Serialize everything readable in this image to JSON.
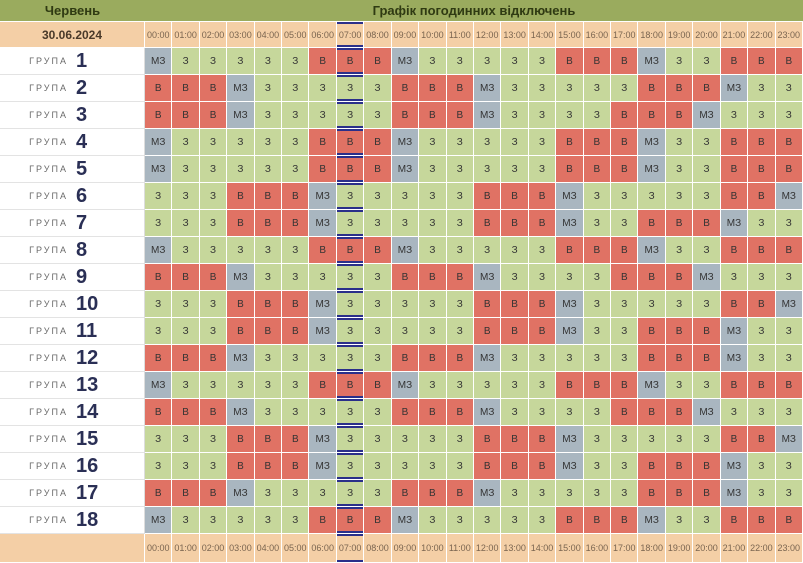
{
  "header": {
    "month": "Червень",
    "title": "Графік погодинних відключень",
    "date": "30.06.2024"
  },
  "hours": [
    "00:00",
    "01:00",
    "02:00",
    "03:00",
    "04:00",
    "05:00",
    "06:00",
    "07:00",
    "08:00",
    "09:00",
    "10:00",
    "11:00",
    "12:00",
    "13:00",
    "14:00",
    "15:00",
    "16:00",
    "17:00",
    "18:00",
    "19:00",
    "20:00",
    "21:00",
    "22:00",
    "23:00"
  ],
  "group_word": "ГРУПА",
  "groups": [
    {
      "number": 1,
      "cells": [
        "МЗ",
        "З",
        "З",
        "З",
        "З",
        "З",
        "В",
        "В",
        "В",
        "МЗ",
        "З",
        "З",
        "З",
        "З",
        "З",
        "В",
        "В",
        "В",
        "МЗ",
        "З",
        "З",
        "В",
        "В",
        "В"
      ]
    },
    {
      "number": 2,
      "cells": [
        "В",
        "В",
        "В",
        "МЗ",
        "З",
        "З",
        "З",
        "З",
        "З",
        "В",
        "В",
        "В",
        "МЗ",
        "З",
        "З",
        "З",
        "З",
        "З",
        "В",
        "В",
        "В",
        "МЗ",
        "З",
        "З"
      ]
    },
    {
      "number": 3,
      "cells": [
        "В",
        "В",
        "В",
        "МЗ",
        "З",
        "З",
        "З",
        "З",
        "З",
        "В",
        "В",
        "В",
        "МЗ",
        "З",
        "З",
        "З",
        "З",
        "В",
        "В",
        "В",
        "МЗ",
        "З",
        "З",
        "З"
      ]
    },
    {
      "number": 4,
      "cells": [
        "МЗ",
        "З",
        "З",
        "З",
        "З",
        "З",
        "В",
        "В",
        "В",
        "МЗ",
        "З",
        "З",
        "З",
        "З",
        "З",
        "В",
        "В",
        "В",
        "МЗ",
        "З",
        "З",
        "В",
        "В",
        "В"
      ]
    },
    {
      "number": 5,
      "cells": [
        "МЗ",
        "З",
        "З",
        "З",
        "З",
        "З",
        "В",
        "В",
        "В",
        "МЗ",
        "З",
        "З",
        "З",
        "З",
        "З",
        "В",
        "В",
        "В",
        "МЗ",
        "З",
        "З",
        "В",
        "В",
        "В"
      ]
    },
    {
      "number": 6,
      "cells": [
        "З",
        "З",
        "З",
        "В",
        "В",
        "В",
        "МЗ",
        "З",
        "З",
        "З",
        "З",
        "З",
        "В",
        "В",
        "В",
        "МЗ",
        "З",
        "З",
        "З",
        "З",
        "З",
        "В",
        "В",
        "МЗ"
      ]
    },
    {
      "number": 7,
      "cells": [
        "З",
        "З",
        "З",
        "В",
        "В",
        "В",
        "МЗ",
        "З",
        "З",
        "З",
        "З",
        "З",
        "В",
        "В",
        "В",
        "МЗ",
        "З",
        "З",
        "В",
        "В",
        "В",
        "МЗ",
        "З",
        "З"
      ]
    },
    {
      "number": 8,
      "cells": [
        "МЗ",
        "З",
        "З",
        "З",
        "З",
        "З",
        "В",
        "В",
        "В",
        "МЗ",
        "З",
        "З",
        "З",
        "З",
        "З",
        "В",
        "В",
        "В",
        "МЗ",
        "З",
        "З",
        "В",
        "В",
        "В"
      ]
    },
    {
      "number": 9,
      "cells": [
        "В",
        "В",
        "В",
        "МЗ",
        "З",
        "З",
        "З",
        "З",
        "З",
        "В",
        "В",
        "В",
        "МЗ",
        "З",
        "З",
        "З",
        "З",
        "В",
        "В",
        "В",
        "МЗ",
        "З",
        "З",
        "З"
      ]
    },
    {
      "number": 10,
      "cells": [
        "З",
        "З",
        "З",
        "В",
        "В",
        "В",
        "МЗ",
        "З",
        "З",
        "З",
        "З",
        "З",
        "В",
        "В",
        "В",
        "МЗ",
        "З",
        "З",
        "З",
        "З",
        "З",
        "В",
        "В",
        "МЗ"
      ]
    },
    {
      "number": 11,
      "cells": [
        "З",
        "З",
        "З",
        "В",
        "В",
        "В",
        "МЗ",
        "З",
        "З",
        "З",
        "З",
        "З",
        "В",
        "В",
        "В",
        "МЗ",
        "З",
        "З",
        "В",
        "В",
        "В",
        "МЗ",
        "З",
        "З"
      ]
    },
    {
      "number": 12,
      "cells": [
        "В",
        "В",
        "В",
        "МЗ",
        "З",
        "З",
        "З",
        "З",
        "З",
        "В",
        "В",
        "В",
        "МЗ",
        "З",
        "З",
        "З",
        "З",
        "З",
        "В",
        "В",
        "В",
        "МЗ",
        "З",
        "З"
      ]
    },
    {
      "number": 13,
      "cells": [
        "МЗ",
        "З",
        "З",
        "З",
        "З",
        "З",
        "В",
        "В",
        "В",
        "МЗ",
        "З",
        "З",
        "З",
        "З",
        "З",
        "В",
        "В",
        "В",
        "МЗ",
        "З",
        "З",
        "В",
        "В",
        "В"
      ]
    },
    {
      "number": 14,
      "cells": [
        "В",
        "В",
        "В",
        "МЗ",
        "З",
        "З",
        "З",
        "З",
        "З",
        "В",
        "В",
        "В",
        "МЗ",
        "З",
        "З",
        "З",
        "З",
        "В",
        "В",
        "В",
        "МЗ",
        "З",
        "З",
        "З"
      ]
    },
    {
      "number": 15,
      "cells": [
        "З",
        "З",
        "З",
        "В",
        "В",
        "В",
        "МЗ",
        "З",
        "З",
        "З",
        "З",
        "З",
        "В",
        "В",
        "В",
        "МЗ",
        "З",
        "З",
        "З",
        "З",
        "З",
        "В",
        "В",
        "МЗ"
      ]
    },
    {
      "number": 16,
      "cells": [
        "З",
        "З",
        "З",
        "В",
        "В",
        "В",
        "МЗ",
        "З",
        "З",
        "З",
        "З",
        "З",
        "В",
        "В",
        "В",
        "МЗ",
        "З",
        "З",
        "В",
        "В",
        "В",
        "МЗ",
        "З",
        "З"
      ]
    },
    {
      "number": 17,
      "cells": [
        "В",
        "В",
        "В",
        "МЗ",
        "З",
        "З",
        "З",
        "З",
        "З",
        "В",
        "В",
        "В",
        "МЗ",
        "З",
        "З",
        "З",
        "З",
        "З",
        "В",
        "В",
        "В",
        "МЗ",
        "З",
        "З"
      ]
    },
    {
      "number": 18,
      "cells": [
        "МЗ",
        "З",
        "З",
        "З",
        "З",
        "З",
        "В",
        "В",
        "В",
        "МЗ",
        "З",
        "З",
        "З",
        "З",
        "З",
        "В",
        "В",
        "В",
        "МЗ",
        "З",
        "З",
        "В",
        "В",
        "В"
      ]
    }
  ]
}
